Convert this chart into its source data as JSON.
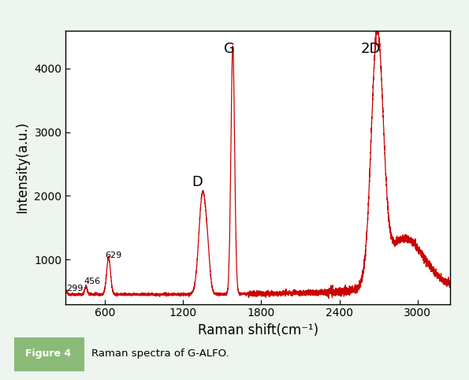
{
  "xlabel": "Raman shift(cm⁻¹)",
  "ylabel": "Intensity(a.u.)",
  "xlim": [
    300,
    3250
  ],
  "ylim": [
    300,
    4600
  ],
  "yticks": [
    1000,
    2000,
    3000,
    4000
  ],
  "xticks": [
    600,
    1200,
    1800,
    2400,
    3000
  ],
  "line_color": "#cc0000",
  "line_width": 0.9,
  "background_outer": "#eef5ee",
  "border_color": "#5aaa5a",
  "caption_box_color": "#8aba78",
  "caption_box_text_color": "#ffffff",
  "caption_text": "Raman spectra of G-ALFO."
}
